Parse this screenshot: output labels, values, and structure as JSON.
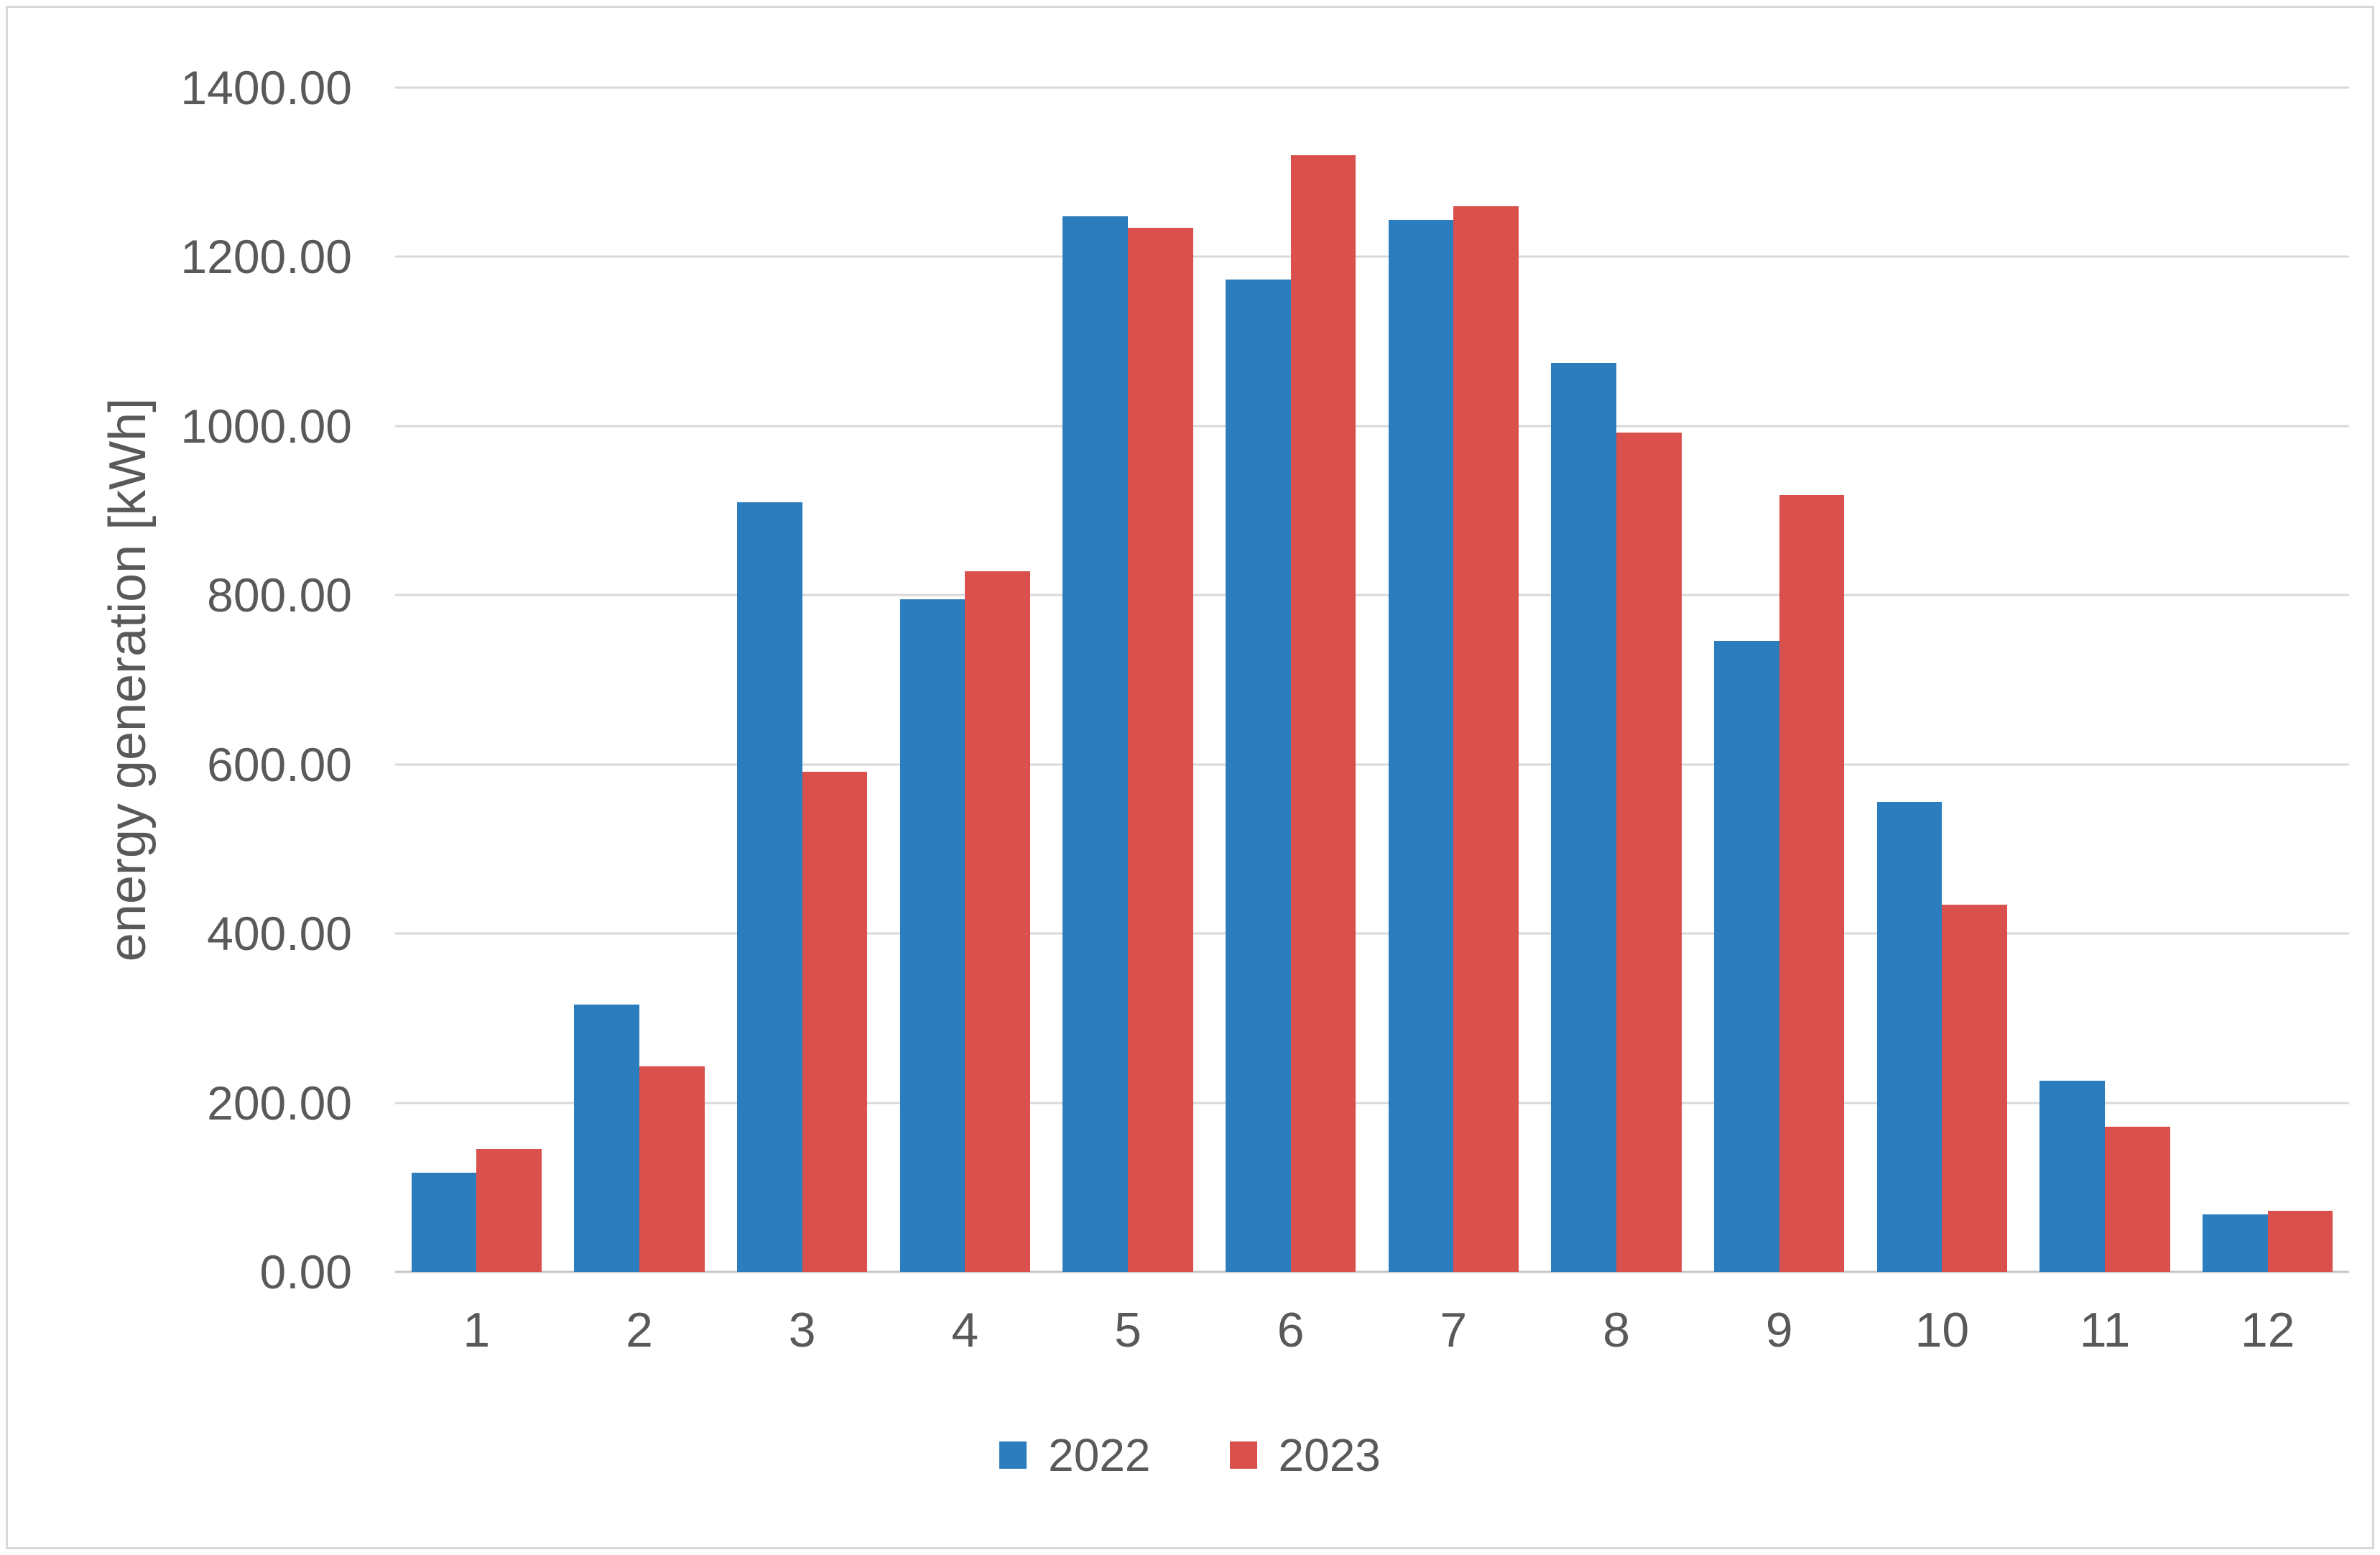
{
  "chart_data": {
    "type": "bar",
    "title": "",
    "xlabel": "",
    "ylabel": "energy generation [kWh]",
    "ylim": [
      0,
      1400
    ],
    "ytick_step": 200,
    "ytick_labels": [
      "0.00",
      "200.00",
      "400.00",
      "600.00",
      "800.00",
      "1000.00",
      "1200.00",
      "1400.00"
    ],
    "grid": true,
    "legend_position": "bottom-center",
    "categories": [
      "1",
      "2",
      "3",
      "4",
      "5",
      "6",
      "7",
      "8",
      "9",
      "10",
      "11",
      "12"
    ],
    "series": [
      {
        "name": "2022",
        "color": "#2B7DBE",
        "values": [
          117,
          316,
          910,
          795,
          1248,
          1173,
          1244,
          1075,
          746,
          556,
          226,
          68
        ]
      },
      {
        "name": "2023",
        "color": "#D9504C",
        "values": [
          145,
          243,
          591,
          828,
          1234,
          1320,
          1260,
          992,
          918,
          434,
          172,
          72
        ]
      }
    ]
  },
  "colors": {
    "gridline": "#D9D9D9",
    "baseline": "#C6C6C6",
    "axis_text": "#595959",
    "frame_border": "#D9D9D9",
    "background": "#FFFFFF"
  }
}
